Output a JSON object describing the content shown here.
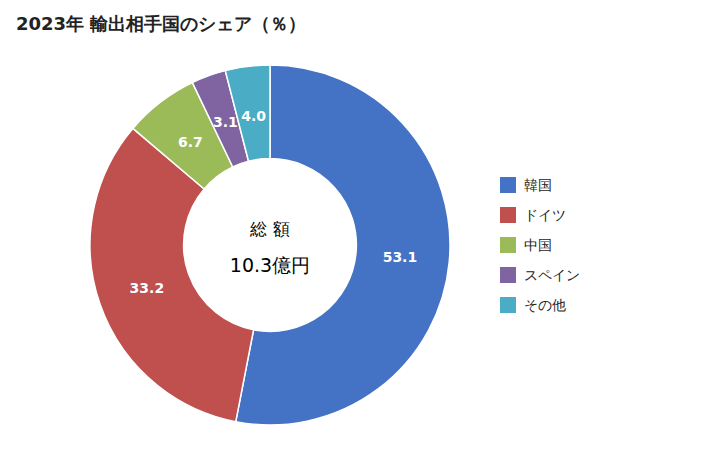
{
  "chart_data": {
    "type": "donut",
    "title": "2023年 輸出相手国のシェア（％）",
    "categories": [
      "韓国",
      "ドイツ",
      "中国",
      "スペイン",
      "その他"
    ],
    "values": [
      53.1,
      33.2,
      6.7,
      3.1,
      4.0
    ],
    "value_labels": [
      "53.1",
      "33.2",
      "6.7",
      "3.1",
      "4.0"
    ],
    "colors": [
      "#4472C4",
      "#C0504D",
      "#9BBB59",
      "#8064A2",
      "#4BACC6"
    ],
    "annotations": [
      "総 額",
      "10.3億円"
    ],
    "data_labels": true,
    "legend": "right"
  }
}
